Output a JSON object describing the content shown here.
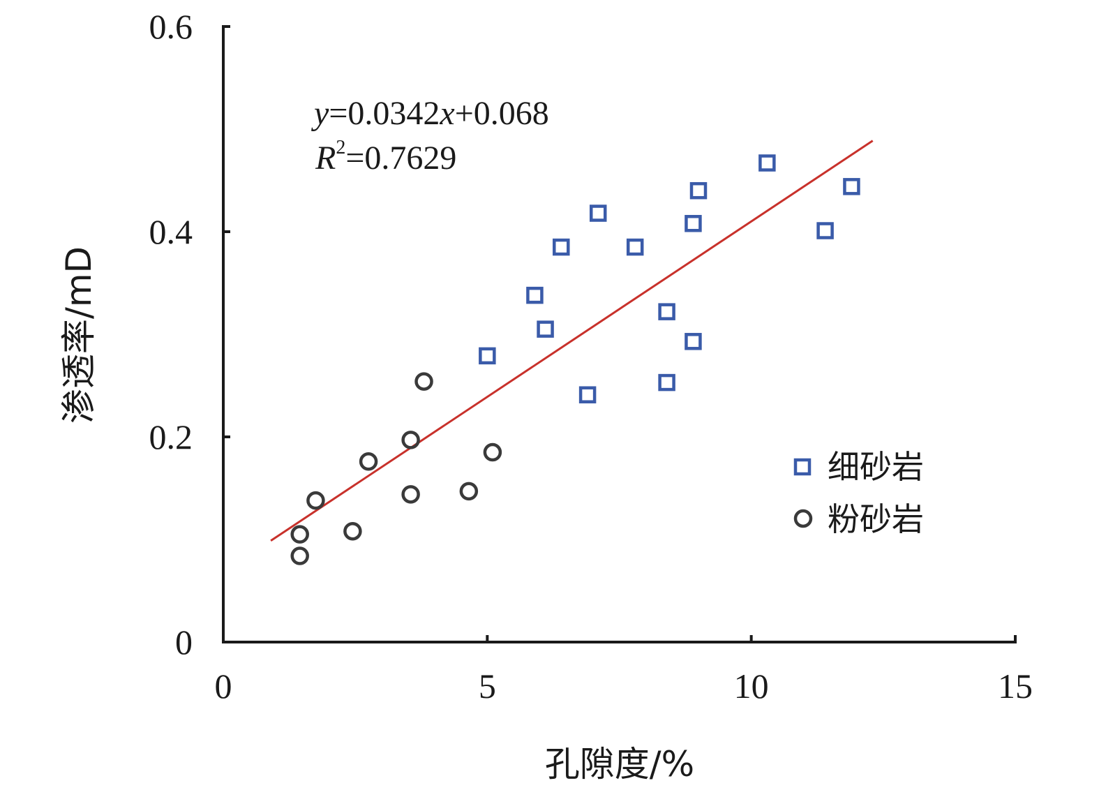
{
  "chart_data": {
    "type": "scatter",
    "xlabel": "孔隙度/%",
    "ylabel": "渗透率/mD",
    "xlim": [
      0,
      15
    ],
    "ylim": [
      0,
      0.6
    ],
    "x_ticks": [
      0,
      5,
      10,
      15
    ],
    "x_tick_labels": [
      "0",
      "5",
      "10",
      "15"
    ],
    "y_ticks": [
      0,
      0.2,
      0.4,
      0.6
    ],
    "y_tick_labels": [
      "0",
      "0.2",
      "0.4",
      "0.6"
    ],
    "grid": false,
    "legend": {
      "placement": "lower-right"
    },
    "series": [
      {
        "name": "细砂岩",
        "marker": "square",
        "color": "#3a5ba9",
        "points": [
          [
            5.0,
            0.279
          ],
          [
            5.9,
            0.338
          ],
          [
            6.1,
            0.305
          ],
          [
            6.4,
            0.385
          ],
          [
            6.9,
            0.241
          ],
          [
            7.1,
            0.418
          ],
          [
            7.8,
            0.385
          ],
          [
            8.4,
            0.322
          ],
          [
            8.4,
            0.253
          ],
          [
            8.9,
            0.408
          ],
          [
            8.9,
            0.293
          ],
          [
            9.0,
            0.44
          ],
          [
            10.3,
            0.467
          ],
          [
            11.4,
            0.401
          ],
          [
            11.9,
            0.444
          ]
        ]
      },
      {
        "name": "粉砂岩",
        "marker": "circle",
        "color": "#3a3a3a",
        "points": [
          [
            1.45,
            0.084
          ],
          [
            1.45,
            0.105
          ],
          [
            1.75,
            0.138
          ],
          [
            2.45,
            0.108
          ],
          [
            2.75,
            0.176
          ],
          [
            3.55,
            0.144
          ],
          [
            3.55,
            0.197
          ],
          [
            3.8,
            0.254
          ],
          [
            4.65,
            0.147
          ],
          [
            5.1,
            0.185
          ]
        ]
      }
    ],
    "trendline": {
      "color": "#c8312b",
      "slope": 0.0342,
      "intercept": 0.068,
      "x_range": [
        0.9,
        12.3
      ],
      "equation": {
        "y": "y",
        "eq1": "=0.0342",
        "x": "x",
        "eq2": "+0.068",
        "r": "R",
        "sup": "2",
        "eq3": "=0.7629"
      }
    }
  }
}
